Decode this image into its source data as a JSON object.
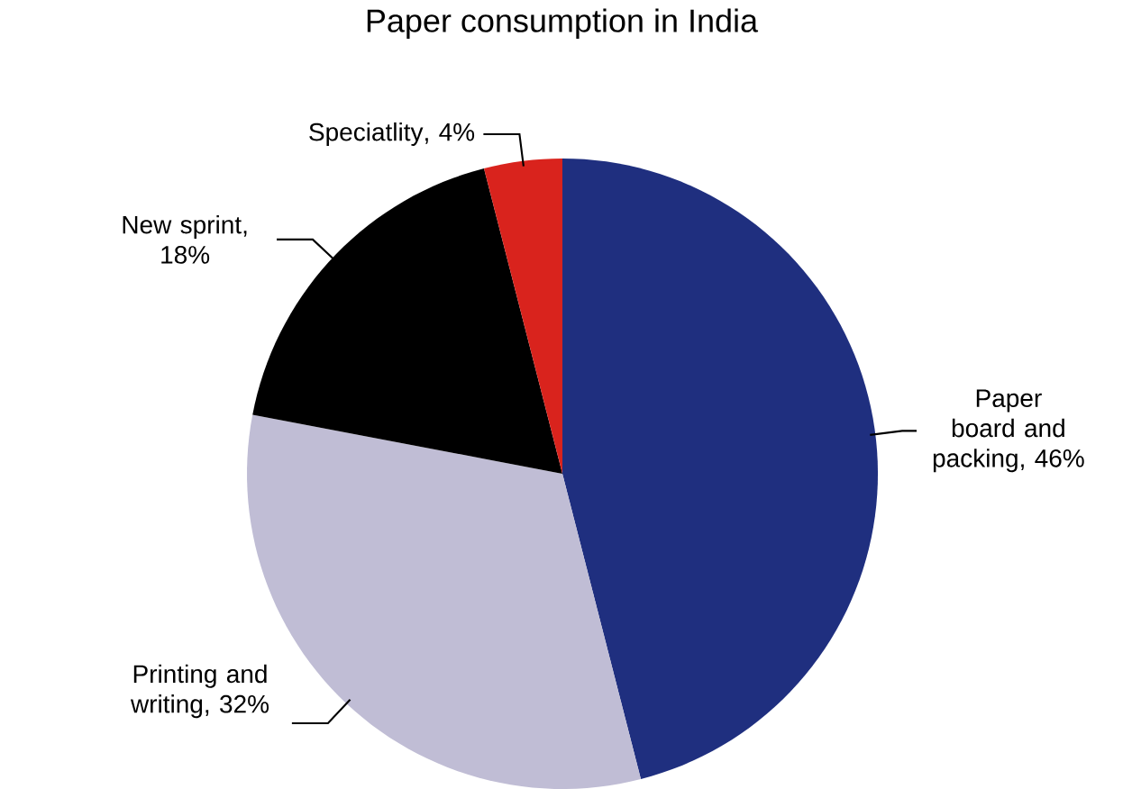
{
  "chart_data": {
    "type": "pie",
    "title": "Paper consumption in India",
    "categories": [
      "Paper board and packing",
      "Printing and writing",
      "New sprint",
      "Speciatlity"
    ],
    "values": [
      46,
      32,
      18,
      4
    ],
    "colors": [
      "#1f2f7f",
      "#c0bdd5",
      "#000000",
      "#d9231d"
    ],
    "value_labels": [
      ", 46%",
      ", 32%",
      ", 18%",
      ", 4%"
    ]
  }
}
